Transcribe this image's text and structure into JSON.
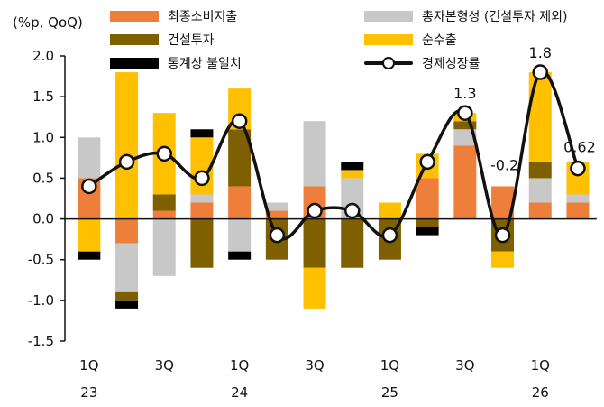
{
  "chart_data": {
    "type": "bar",
    "unit": "(%p, QoQ)",
    "ylim": [
      -1.5,
      2.0
    ],
    "yticks": [
      "2.0",
      "1.5",
      "1.0",
      "0.5",
      "0.0",
      "-0.5",
      "-1.0",
      "-1.5"
    ],
    "ytick_values": [
      2.0,
      1.5,
      1.0,
      0.5,
      0.0,
      -0.5,
      -1.0,
      -1.5
    ],
    "quarters": [
      "1Q23",
      "2Q23",
      "3Q23",
      "4Q23",
      "1Q24",
      "2Q24",
      "3Q24",
      "4Q24",
      "1Q25",
      "2Q25",
      "3Q25",
      "4Q25",
      "1Q26",
      "2Q26"
    ],
    "x_tick_labels": [
      {
        "index": 0,
        "quarter": "1Q",
        "year": "23"
      },
      {
        "index": 2,
        "quarter": "3Q",
        "year": ""
      },
      {
        "index": 4,
        "quarter": "1Q",
        "year": "24"
      },
      {
        "index": 6,
        "quarter": "3Q",
        "year": ""
      },
      {
        "index": 8,
        "quarter": "1Q",
        "year": "25"
      },
      {
        "index": 10,
        "quarter": "3Q",
        "year": ""
      },
      {
        "index": 12,
        "quarter": "1Q",
        "year": "26"
      }
    ],
    "series": [
      {
        "name": "최종소비지출",
        "key": "consumption",
        "color": "#EE7F3A",
        "values": [
          0.5,
          -0.3,
          0.1,
          0.2,
          0.4,
          0.1,
          0.4,
          0.0,
          0.0,
          0.5,
          0.9,
          0.4,
          0.2,
          0.2
        ]
      },
      {
        "name": "총자본형성 (건설투자 제외)",
        "key": "capital",
        "color": "#C8C8C8",
        "values": [
          0.5,
          -0.6,
          -0.7,
          0.1,
          -0.4,
          0.1,
          0.8,
          0.5,
          0.0,
          0.0,
          0.2,
          0.0,
          0.3,
          0.1
        ]
      },
      {
        "name": "건설투자",
        "key": "construction",
        "color": "#7F6000",
        "values": [
          0.0,
          -0.1,
          0.2,
          -0.6,
          0.7,
          -0.5,
          -0.6,
          -0.6,
          -0.5,
          -0.1,
          0.1,
          -0.4,
          0.2,
          0.0
        ]
      },
      {
        "name": "순수출",
        "key": "net_exports",
        "color": "#FFC000",
        "values": [
          -0.4,
          1.8,
          1.0,
          0.7,
          0.5,
          0.0,
          -0.5,
          0.1,
          0.2,
          0.3,
          0.1,
          -0.2,
          1.1,
          0.4
        ]
      },
      {
        "name": "통계상 불일치",
        "key": "discrepancy",
        "color": "#000000",
        "values": [
          -0.1,
          -0.1,
          0.0,
          0.1,
          -0.1,
          0.0,
          0.0,
          0.1,
          0.0,
          -0.1,
          0.0,
          0.0,
          0.0,
          0.0
        ]
      }
    ],
    "line": {
      "name": "경제성장률",
      "color": "#111111",
      "values": [
        0.4,
        0.7,
        0.8,
        0.5,
        1.2,
        -0.2,
        0.1,
        0.1,
        -0.2,
        0.7,
        1.3,
        -0.2,
        1.8,
        0.62
      ]
    },
    "annotations": [
      {
        "index": 10,
        "text": "1.3"
      },
      {
        "index": 11,
        "text": "-0.2"
      },
      {
        "index": 12,
        "text": "1.8"
      },
      {
        "index": 13,
        "text": "0.62"
      }
    ]
  }
}
